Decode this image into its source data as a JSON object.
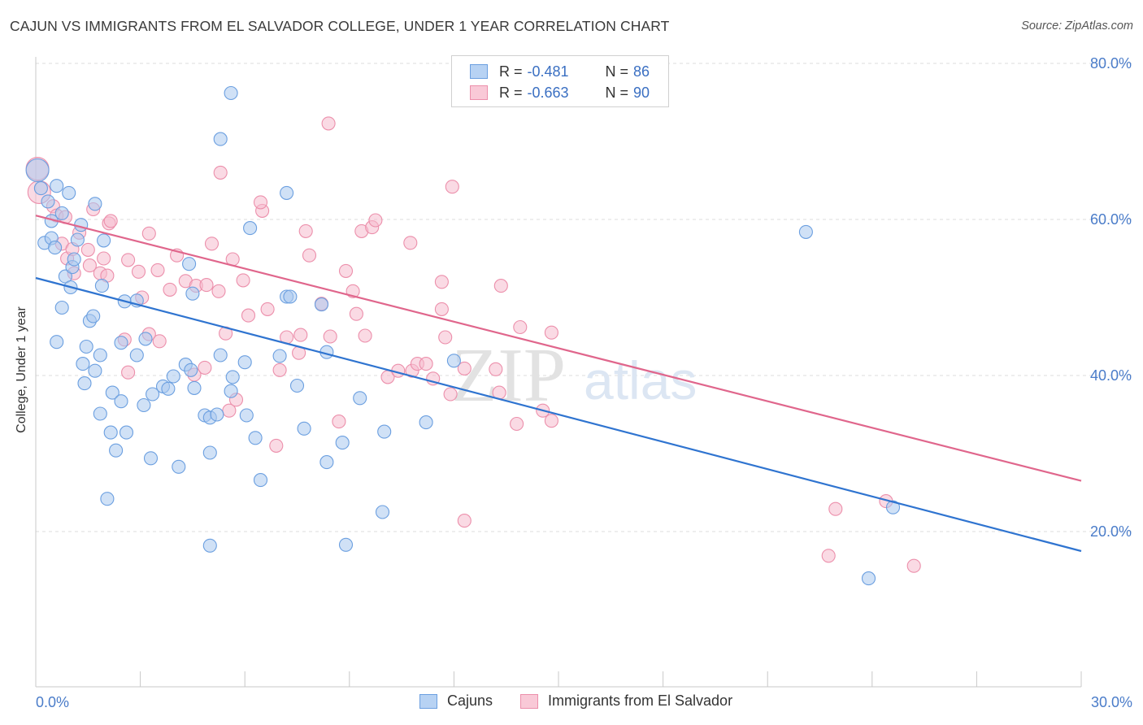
{
  "title": "CAJUN VS IMMIGRANTS FROM EL SALVADOR COLLEGE, UNDER 1 YEAR CORRELATION CHART",
  "source": "Source: ZipAtlas.com",
  "watermark": {
    "zip": "ZIP",
    "atlas": "atlas"
  },
  "colors": {
    "blue_fill": "#a9c8ef",
    "blue_stroke": "#6b9fe0",
    "blue_line": "#2f74d0",
    "pink_fill": "#f6bccd",
    "pink_stroke": "#ec8fab",
    "pink_line": "#e0668c",
    "grid": "#dedede",
    "tick_text": "#4a7cc9"
  },
  "legend": {
    "rows": [
      {
        "r_label": "R =",
        "r_value": "-0.481",
        "n_label": "N =",
        "n_value": "86"
      },
      {
        "r_label": "R =",
        "r_value": "-0.663",
        "n_label": "N =",
        "n_value": "90"
      }
    ]
  },
  "bottom_legend": {
    "series1": "Cajuns",
    "series2": "Immigrants from El Salvador"
  },
  "chart_data": {
    "type": "scatter",
    "title": "CAJUN VS IMMIGRANTS FROM EL SALVADOR COLLEGE, UNDER 1 YEAR CORRELATION CHART",
    "xlabel": "",
    "ylabel": "College, Under 1 year",
    "xlim": [
      0,
      30
    ],
    "ylim": [
      0,
      82
    ],
    "x_tick_labels": [
      "0.0%",
      "30.0%"
    ],
    "y_ticks": [
      20,
      40,
      60,
      80
    ],
    "y_tick_labels": [
      "20.0%",
      "40.0%",
      "60.0%",
      "80.0%"
    ],
    "grid": true,
    "legend_position": "top-center",
    "series": [
      {
        "name": "Cajuns",
        "color": "#a9c8ef",
        "trend": {
          "x": [
            0,
            30
          ],
          "y": [
            52.5,
            17.5
          ]
        },
        "points": [
          [
            0.05,
            66.3
          ],
          [
            0.15,
            64.0
          ],
          [
            0.35,
            62.3
          ],
          [
            0.45,
            59.8
          ],
          [
            0.25,
            57.0
          ],
          [
            0.45,
            57.6
          ],
          [
            0.55,
            56.4
          ],
          [
            0.6,
            64.3
          ],
          [
            0.75,
            60.8
          ],
          [
            0.95,
            63.4
          ],
          [
            0.85,
            52.7
          ],
          [
            1.0,
            51.3
          ],
          [
            1.05,
            53.9
          ],
          [
            1.1,
            54.9
          ],
          [
            1.2,
            57.4
          ],
          [
            0.75,
            48.7
          ],
          [
            0.6,
            44.3
          ],
          [
            1.3,
            59.3
          ],
          [
            1.7,
            62.0
          ],
          [
            1.95,
            57.3
          ],
          [
            1.9,
            51.5
          ],
          [
            1.55,
            47.0
          ],
          [
            1.65,
            47.6
          ],
          [
            1.45,
            43.7
          ],
          [
            1.85,
            42.6
          ],
          [
            1.35,
            41.5
          ],
          [
            1.7,
            40.6
          ],
          [
            1.4,
            39.0
          ],
          [
            2.45,
            44.2
          ],
          [
            2.55,
            49.5
          ],
          [
            2.9,
            49.6
          ],
          [
            2.9,
            42.6
          ],
          [
            3.15,
            44.7
          ],
          [
            2.2,
            37.8
          ],
          [
            2.45,
            36.7
          ],
          [
            1.85,
            35.1
          ],
          [
            2.15,
            32.7
          ],
          [
            2.3,
            30.4
          ],
          [
            2.6,
            32.7
          ],
          [
            3.1,
            36.2
          ],
          [
            3.35,
            37.6
          ],
          [
            3.65,
            38.6
          ],
          [
            3.8,
            38.3
          ],
          [
            3.95,
            39.9
          ],
          [
            4.3,
            41.4
          ],
          [
            4.45,
            40.7
          ],
          [
            4.55,
            38.4
          ],
          [
            4.4,
            54.3
          ],
          [
            4.5,
            50.5
          ],
          [
            3.3,
            29.4
          ],
          [
            2.05,
            24.2
          ],
          [
            4.1,
            28.3
          ],
          [
            5.0,
            30.1
          ],
          [
            4.85,
            34.9
          ],
          [
            5.0,
            34.6
          ],
          [
            5.2,
            35.0
          ],
          [
            5.3,
            42.6
          ],
          [
            5.6,
            38.0
          ],
          [
            5.65,
            39.8
          ],
          [
            5.3,
            70.3
          ],
          [
            5.6,
            76.2
          ],
          [
            6.0,
            41.7
          ],
          [
            6.15,
            58.9
          ],
          [
            6.05,
            34.9
          ],
          [
            7.2,
            50.1
          ],
          [
            7.2,
            63.4
          ],
          [
            7.5,
            38.7
          ],
          [
            7.7,
            33.2
          ],
          [
            8.35,
            43.0
          ],
          [
            8.2,
            49.1
          ],
          [
            7.3,
            50.1
          ],
          [
            8.8,
            31.4
          ],
          [
            9.3,
            37.1
          ],
          [
            10.0,
            32.8
          ],
          [
            8.35,
            28.9
          ],
          [
            8.9,
            18.3
          ],
          [
            9.95,
            22.5
          ],
          [
            11.2,
            34.0
          ],
          [
            12.0,
            41.9
          ],
          [
            22.1,
            58.4
          ],
          [
            24.6,
            23.1
          ],
          [
            23.9,
            14.0
          ],
          [
            6.45,
            26.6
          ],
          [
            5.0,
            18.2
          ],
          [
            7.0,
            42.5
          ],
          [
            6.3,
            32.0
          ]
        ]
      },
      {
        "name": "Immigrants from El Salvador",
        "color": "#f6bccd",
        "trend": {
          "x": [
            0,
            30
          ],
          "y": [
            60.5,
            26.5
          ]
        },
        "points": [
          [
            0.05,
            66.5
          ],
          [
            0.1,
            63.5
          ],
          [
            0.5,
            61.7
          ],
          [
            0.6,
            60.5
          ],
          [
            0.75,
            56.9
          ],
          [
            0.85,
            60.3
          ],
          [
            0.9,
            55.0
          ],
          [
            1.05,
            56.2
          ],
          [
            1.1,
            53.1
          ],
          [
            1.25,
            58.3
          ],
          [
            1.5,
            56.1
          ],
          [
            1.55,
            54.1
          ],
          [
            1.65,
            61.3
          ],
          [
            1.85,
            53.1
          ],
          [
            1.95,
            55.0
          ],
          [
            2.1,
            59.5
          ],
          [
            2.05,
            52.8
          ],
          [
            2.15,
            59.8
          ],
          [
            2.55,
            44.6
          ],
          [
            2.65,
            54.8
          ],
          [
            2.65,
            40.4
          ],
          [
            2.95,
            53.3
          ],
          [
            3.05,
            50.0
          ],
          [
            3.25,
            58.2
          ],
          [
            3.5,
            53.5
          ],
          [
            3.25,
            45.3
          ],
          [
            3.55,
            44.4
          ],
          [
            3.85,
            51.0
          ],
          [
            4.05,
            55.4
          ],
          [
            4.3,
            52.1
          ],
          [
            4.55,
            40.1
          ],
          [
            4.6,
            51.5
          ],
          [
            4.9,
            51.6
          ],
          [
            4.85,
            41.0
          ],
          [
            5.05,
            56.9
          ],
          [
            5.25,
            50.8
          ],
          [
            5.45,
            45.4
          ],
          [
            5.55,
            35.5
          ],
          [
            5.65,
            54.9
          ],
          [
            5.75,
            36.9
          ],
          [
            5.95,
            52.2
          ],
          [
            6.1,
            47.7
          ],
          [
            6.5,
            61.1
          ],
          [
            6.65,
            48.5
          ],
          [
            6.9,
            31.0
          ],
          [
            7.2,
            44.9
          ],
          [
            7.0,
            40.7
          ],
          [
            7.55,
            42.9
          ],
          [
            7.75,
            58.5
          ],
          [
            7.85,
            55.4
          ],
          [
            8.2,
            49.2
          ],
          [
            8.45,
            45.0
          ],
          [
            8.7,
            34.1
          ],
          [
            8.9,
            53.4
          ],
          [
            9.1,
            50.8
          ],
          [
            9.2,
            47.9
          ],
          [
            9.35,
            58.5
          ],
          [
            9.65,
            59.0
          ],
          [
            9.75,
            59.9
          ],
          [
            10.1,
            39.8
          ],
          [
            10.4,
            40.6
          ],
          [
            10.8,
            40.6
          ],
          [
            10.95,
            41.5
          ],
          [
            11.2,
            41.5
          ],
          [
            11.4,
            39.6
          ],
          [
            11.65,
            48.5
          ],
          [
            11.65,
            52.0
          ],
          [
            11.9,
            37.6
          ],
          [
            11.75,
            44.9
          ],
          [
            12.3,
            40.9
          ],
          [
            13.2,
            40.8
          ],
          [
            13.3,
            37.8
          ],
          [
            13.35,
            51.5
          ],
          [
            13.9,
            46.2
          ],
          [
            14.55,
            35.5
          ],
          [
            14.8,
            34.2
          ],
          [
            14.8,
            45.5
          ],
          [
            11.95,
            64.2
          ],
          [
            10.75,
            57.0
          ],
          [
            9.45,
            45.1
          ],
          [
            12.3,
            21.4
          ],
          [
            13.8,
            33.8
          ],
          [
            22.95,
            22.9
          ],
          [
            22.75,
            16.9
          ],
          [
            24.4,
            23.9
          ],
          [
            25.2,
            15.6
          ],
          [
            5.3,
            66.0
          ],
          [
            8.4,
            72.3
          ],
          [
            7.6,
            45.2
          ],
          [
            6.45,
            62.2
          ]
        ]
      }
    ]
  }
}
